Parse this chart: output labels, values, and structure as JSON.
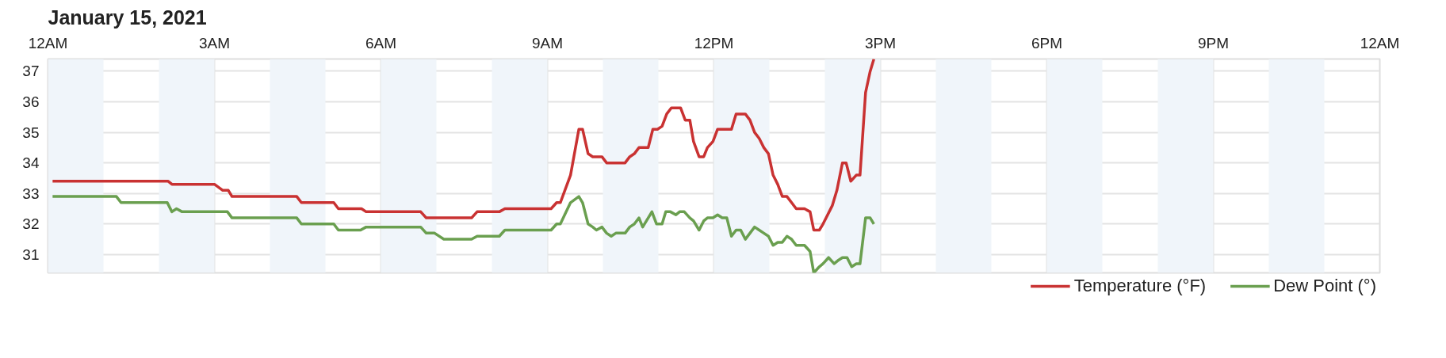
{
  "chart_data": {
    "type": "line",
    "title": "January 15, 2021",
    "xlim": [
      "2021-01-15T00:00",
      "2021-01-16T00:00"
    ],
    "ylim": [
      30.4,
      37.4
    ],
    "xticks": [
      {
        "value": "2021-01-15T00:00",
        "label": "12AM"
      },
      {
        "value": "2021-01-15T03:00",
        "label": "3AM"
      },
      {
        "value": "2021-01-15T06:00",
        "label": "6AM"
      },
      {
        "value": "2021-01-15T09:00",
        "label": "9AM"
      },
      {
        "value": "2021-01-15T12:00",
        "label": "12PM"
      },
      {
        "value": "2021-01-15T15:00",
        "label": "3PM"
      },
      {
        "value": "2021-01-15T18:00",
        "label": "6PM"
      },
      {
        "value": "2021-01-15T21:00",
        "label": "9PM"
      },
      {
        "value": "2021-01-16T00:00",
        "label": "12AM"
      }
    ],
    "yticks": [
      31,
      32,
      33,
      34,
      35,
      36,
      37
    ],
    "grid": true,
    "legend": "bottom right",
    "marker": "none",
    "line_style": "solid",
    "bands": [
      {
        "axis": "x",
        "from": "2021-01-15T00:00",
        "to": "2021-01-15T01:00",
        "color": "#f0f5fa"
      },
      {
        "axis": "x",
        "from": "2021-01-15T02:00",
        "to": "2021-01-15T03:00",
        "color": "#f0f5fa"
      },
      {
        "axis": "x",
        "from": "2021-01-15T04:00",
        "to": "2021-01-15T05:00",
        "color": "#f0f5fa"
      },
      {
        "axis": "x",
        "from": "2021-01-15T06:00",
        "to": "2021-01-15T07:00",
        "color": "#f0f5fa"
      },
      {
        "axis": "x",
        "from": "2021-01-15T08:00",
        "to": "2021-01-15T09:00",
        "color": "#f0f5fa"
      },
      {
        "axis": "x",
        "from": "2021-01-15T10:00",
        "to": "2021-01-15T11:00",
        "color": "#f0f5fa"
      },
      {
        "axis": "x",
        "from": "2021-01-15T12:00",
        "to": "2021-01-15T13:00",
        "color": "#f0f5fa"
      },
      {
        "axis": "x",
        "from": "2021-01-15T14:00",
        "to": "2021-01-15T15:00",
        "color": "#f0f5fa"
      },
      {
        "axis": "x",
        "from": "2021-01-15T16:00",
        "to": "2021-01-15T17:00",
        "color": "#f0f5fa"
      },
      {
        "axis": "x",
        "from": "2021-01-15T18:00",
        "to": "2021-01-15T19:00",
        "color": "#f0f5fa"
      },
      {
        "axis": "x",
        "from": "2021-01-15T20:00",
        "to": "2021-01-15T21:00",
        "color": "#f0f5fa"
      },
      {
        "axis": "x",
        "from": "2021-01-15T22:00",
        "to": "2021-01-15T23:00",
        "color": "#f0f5fa"
      }
    ],
    "series": [
      {
        "name": "Temperature (°F)",
        "color": "#c93232",
        "x": [
          "2021-01-15T00:05",
          "2021-01-15T02:10",
          "2021-01-15T02:14",
          "2021-01-15T03:00",
          "2021-01-15T03:09",
          "2021-01-15T03:15",
          "2021-01-15T03:19",
          "2021-01-15T04:29",
          "2021-01-15T04:34",
          "2021-01-15T05:09",
          "2021-01-15T05:14",
          "2021-01-15T05:39",
          "2021-01-15T05:44",
          "2021-01-15T06:43",
          "2021-01-15T06:49",
          "2021-01-15T07:38",
          "2021-01-15T07:44",
          "2021-01-15T08:08",
          "2021-01-15T08:14",
          "2021-01-15T09:04",
          "2021-01-15T09:10",
          "2021-01-15T09:14",
          "2021-01-15T09:25",
          "2021-01-15T09:34",
          "2021-01-15T09:38",
          "2021-01-15T09:44",
          "2021-01-15T09:49",
          "2021-01-15T09:59",
          "2021-01-15T10:04",
          "2021-01-15T10:24",
          "2021-01-15T10:29",
          "2021-01-15T10:34",
          "2021-01-15T10:39",
          "2021-01-15T10:49",
          "2021-01-15T10:54",
          "2021-01-15T10:59",
          "2021-01-15T11:04",
          "2021-01-15T11:09",
          "2021-01-15T11:14",
          "2021-01-15T11:24",
          "2021-01-15T11:29",
          "2021-01-15T11:34",
          "2021-01-15T11:38",
          "2021-01-15T11:44",
          "2021-01-15T11:49",
          "2021-01-15T11:53",
          "2021-01-15T11:59",
          "2021-01-15T12:04",
          "2021-01-15T12:19",
          "2021-01-15T12:24",
          "2021-01-15T12:34",
          "2021-01-15T12:39",
          "2021-01-15T12:44",
          "2021-01-15T12:49",
          "2021-01-15T12:54",
          "2021-01-15T12:59",
          "2021-01-15T13:04",
          "2021-01-15T13:09",
          "2021-01-15T13:14",
          "2021-01-15T13:19",
          "2021-01-15T13:24",
          "2021-01-15T13:29",
          "2021-01-15T13:38",
          "2021-01-15T13:44",
          "2021-01-15T13:48",
          "2021-01-15T13:54",
          "2021-01-15T13:58",
          "2021-01-15T14:03",
          "2021-01-15T14:08",
          "2021-01-15T14:13",
          "2021-01-15T14:19",
          "2021-01-15T14:23",
          "2021-01-15T14:28",
          "2021-01-15T14:34",
          "2021-01-15T14:38",
          "2021-01-15T14:44",
          "2021-01-15T14:49",
          "2021-01-15T14:53"
        ],
        "values": [
          33.4,
          33.4,
          33.3,
          33.3,
          33.1,
          33.1,
          32.9,
          32.9,
          32.7,
          32.7,
          32.5,
          32.5,
          32.4,
          32.4,
          32.2,
          32.2,
          32.4,
          32.4,
          32.5,
          32.5,
          32.7,
          32.7,
          33.6,
          35.1,
          35.1,
          34.3,
          34.2,
          34.2,
          34.0,
          34.0,
          34.2,
          34.3,
          34.5,
          34.5,
          35.1,
          35.1,
          35.2,
          35.6,
          35.8,
          35.8,
          35.4,
          35.4,
          34.7,
          34.2,
          34.2,
          34.5,
          34.7,
          35.1,
          35.1,
          35.6,
          35.6,
          35.4,
          35.0,
          34.8,
          34.5,
          34.3,
          33.6,
          33.3,
          32.9,
          32.9,
          32.7,
          32.5,
          32.5,
          32.4,
          31.8,
          31.8,
          32.0,
          32.3,
          32.6,
          33.1,
          34.0,
          34.0,
          33.4,
          33.6,
          33.6,
          36.3,
          37.0,
          37.4
        ]
      },
      {
        "name": "Dew Point (°)",
        "color": "#6a9f4f",
        "x": [
          "2021-01-15T00:05",
          "2021-01-15T01:14",
          "2021-01-15T01:19",
          "2021-01-15T02:09",
          "2021-01-15T02:14",
          "2021-01-15T02:19",
          "2021-01-15T02:25",
          "2021-01-15T03:14",
          "2021-01-15T03:19",
          "2021-01-15T04:29",
          "2021-01-15T04:34",
          "2021-01-15T05:09",
          "2021-01-15T05:14",
          "2021-01-15T05:38",
          "2021-01-15T05:44",
          "2021-01-15T06:43",
          "2021-01-15T06:49",
          "2021-01-15T06:58",
          "2021-01-15T07:08",
          "2021-01-15T07:38",
          "2021-01-15T07:44",
          "2021-01-15T08:08",
          "2021-01-15T08:14",
          "2021-01-15T09:04",
          "2021-01-15T09:10",
          "2021-01-15T09:14",
          "2021-01-15T09:25",
          "2021-01-15T09:34",
          "2021-01-15T09:38",
          "2021-01-15T09:44",
          "2021-01-15T09:49",
          "2021-01-15T09:53",
          "2021-01-15T09:59",
          "2021-01-15T10:04",
          "2021-01-15T10:09",
          "2021-01-15T10:14",
          "2021-01-15T10:24",
          "2021-01-15T10:29",
          "2021-01-15T10:34",
          "2021-01-15T10:39",
          "2021-01-15T10:43",
          "2021-01-15T10:49",
          "2021-01-15T10:53",
          "2021-01-15T10:58",
          "2021-01-15T11:04",
          "2021-01-15T11:08",
          "2021-01-15T11:13",
          "2021-01-15T11:19",
          "2021-01-15T11:23",
          "2021-01-15T11:28",
          "2021-01-15T11:34",
          "2021-01-15T11:38",
          "2021-01-15T11:44",
          "2021-01-15T11:49",
          "2021-01-15T11:53",
          "2021-01-15T11:59",
          "2021-01-15T12:04",
          "2021-01-15T12:09",
          "2021-01-15T12:14",
          "2021-01-15T12:19",
          "2021-01-15T12:24",
          "2021-01-15T12:29",
          "2021-01-15T12:34",
          "2021-01-15T12:39",
          "2021-01-15T12:44",
          "2021-01-15T12:49",
          "2021-01-15T12:54",
          "2021-01-15T12:59",
          "2021-01-15T13:04",
          "2021-01-15T13:09",
          "2021-01-15T13:14",
          "2021-01-15T13:19",
          "2021-01-15T13:24",
          "2021-01-15T13:29",
          "2021-01-15T13:38",
          "2021-01-15T13:44",
          "2021-01-15T13:48",
          "2021-01-15T13:54",
          "2021-01-15T13:58",
          "2021-01-15T14:04",
          "2021-01-15T14:10",
          "2021-01-15T14:14",
          "2021-01-15T14:19",
          "2021-01-15T14:24",
          "2021-01-15T14:29",
          "2021-01-15T14:34",
          "2021-01-15T14:38",
          "2021-01-15T14:44",
          "2021-01-15T14:49",
          "2021-01-15T14:53"
        ],
        "values": [
          32.9,
          32.9,
          32.7,
          32.7,
          32.4,
          32.5,
          32.4,
          32.4,
          32.2,
          32.2,
          32.0,
          32.0,
          31.8,
          31.8,
          31.9,
          31.9,
          31.7,
          31.7,
          31.5,
          31.5,
          31.6,
          31.6,
          31.8,
          31.8,
          32.0,
          32.0,
          32.7,
          32.9,
          32.7,
          32.0,
          31.9,
          31.8,
          31.9,
          31.7,
          31.6,
          31.7,
          31.7,
          31.9,
          32.0,
          32.2,
          31.9,
          32.2,
          32.4,
          32.0,
          32.0,
          32.4,
          32.4,
          32.3,
          32.4,
          32.4,
          32.2,
          32.1,
          31.8,
          32.1,
          32.2,
          32.2,
          32.3,
          32.2,
          32.2,
          31.6,
          31.8,
          31.8,
          31.5,
          31.7,
          31.9,
          31.8,
          31.7,
          31.6,
          31.3,
          31.4,
          31.4,
          31.6,
          31.5,
          31.3,
          31.3,
          31.1,
          30.4,
          30.6,
          30.7,
          30.9,
          30.7,
          30.8,
          30.9,
          30.9,
          30.6,
          30.7,
          30.7,
          32.2,
          32.2,
          32.0
        ]
      }
    ]
  }
}
